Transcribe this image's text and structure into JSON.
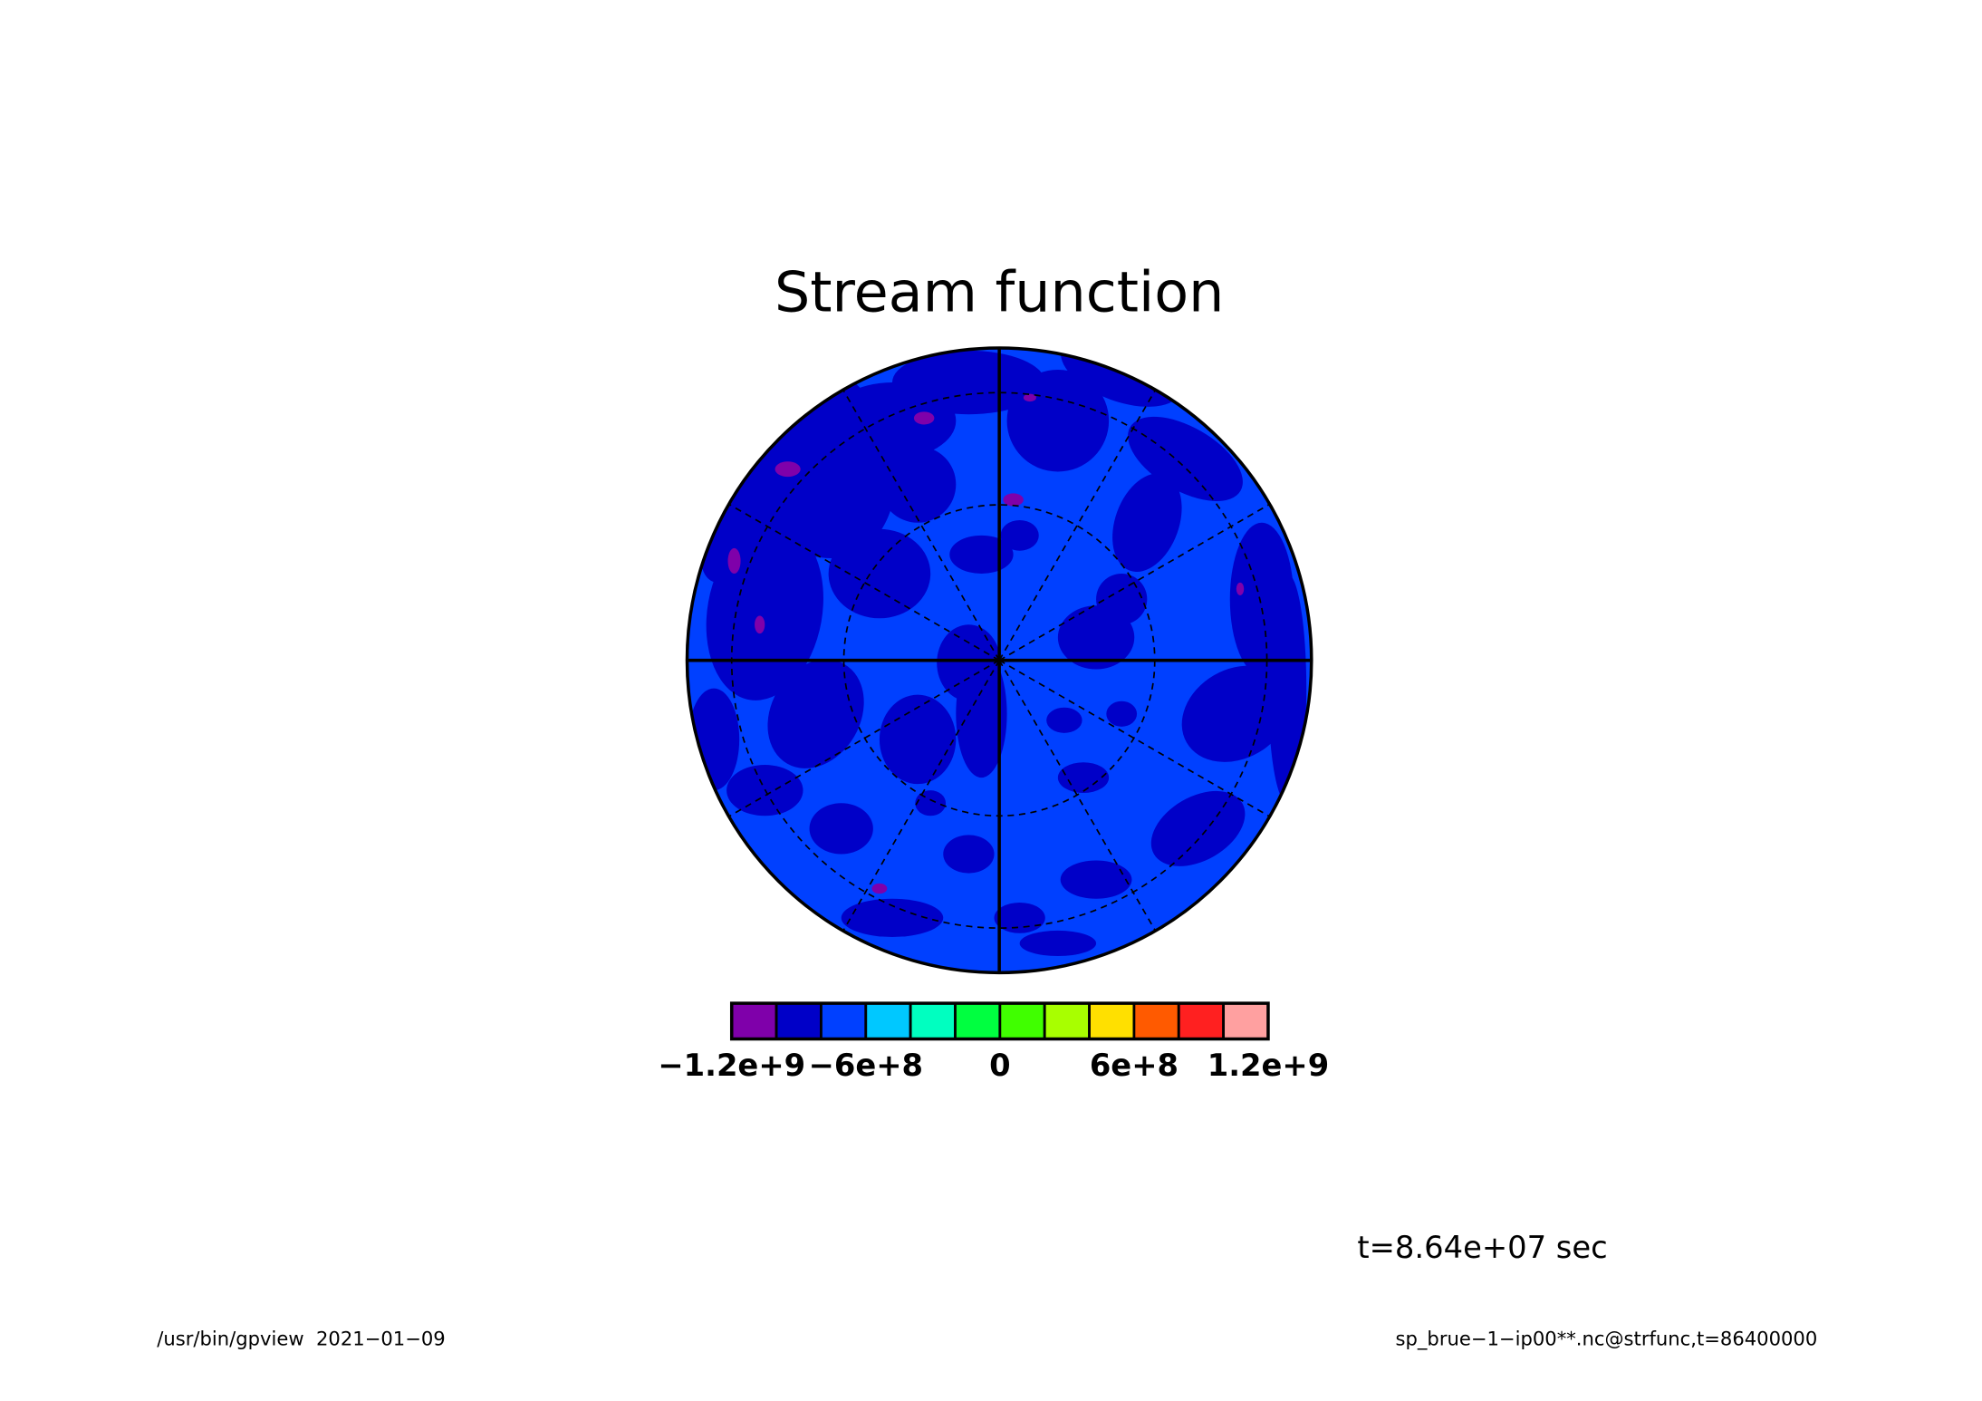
{
  "chart_data": {
    "type": "contour",
    "title": "Stream function",
    "projection": "polar",
    "levels": [
      -1200000000,
      -1000000000,
      -800000000,
      -600000000,
      -400000000,
      -200000000,
      0,
      200000000,
      400000000,
      600000000,
      800000000,
      1000000000,
      1200000000
    ],
    "colors": [
      "#7f00aa",
      "#0000c8",
      "#0040ff",
      "#00c8ff",
      "#00ffc0",
      "#00ff40",
      "#40ff00",
      "#a8ff00",
      "#ffe000",
      "#ff5a00",
      "#ff2020",
      "#ffa0a0"
    ],
    "colorbar_ticks": [
      {
        "value": -1200000000,
        "label": "−1.2e+9"
      },
      {
        "value": -600000000,
        "label": "−6e+8"
      },
      0,
      {
        "value": 600000000,
        "label": "6e+8"
      },
      {
        "value": 1200000000,
        "label": "1.2e+9"
      }
    ],
    "annotation": "t=8.64e+07 sec",
    "footer_left": "/usr/bin/gpview  2021−01−09",
    "footer_right": "sp_brue−1−ip00**.nc@strfunc,t=86400000"
  }
}
